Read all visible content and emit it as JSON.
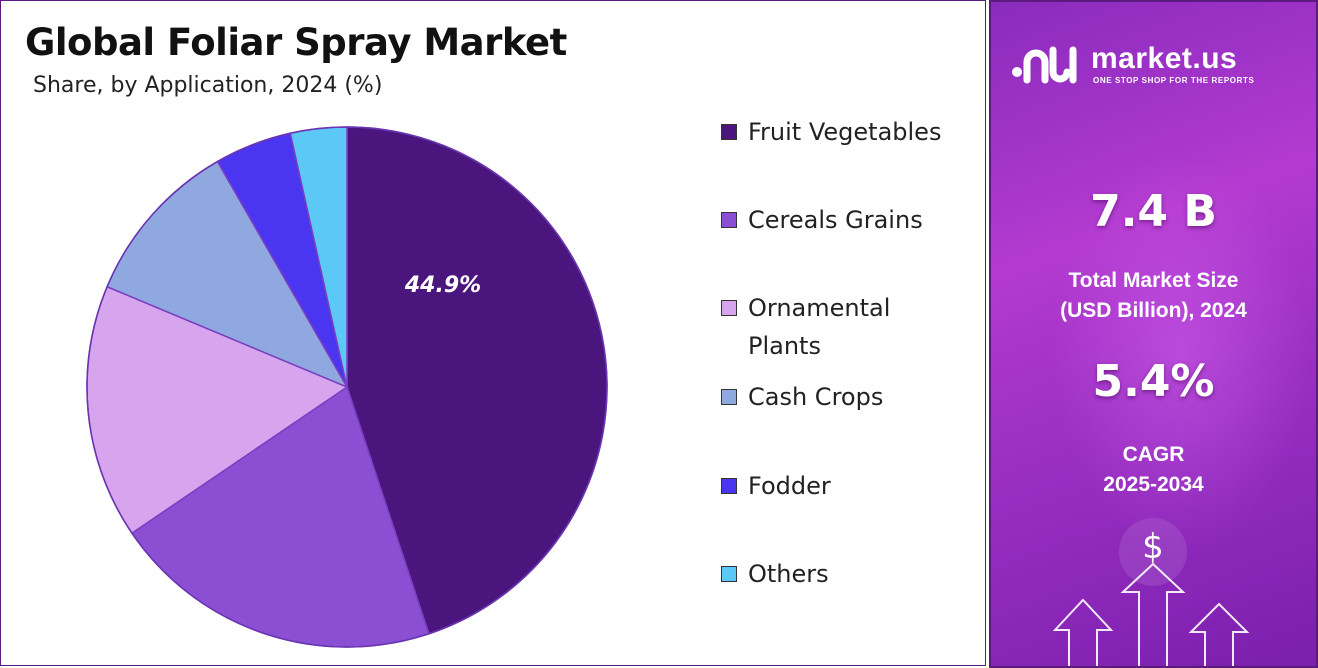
{
  "header": {
    "title": "Global Foliar Spray Market",
    "subtitle": "Share, by Application, 2024 (%)"
  },
  "chart_data": {
    "type": "pie",
    "categories": [
      "Fruit Vegetables",
      "Cereals Grains",
      "Ornamental Plants",
      "Cash Crops",
      "Fodder",
      "Others"
    ],
    "values": [
      44.9,
      20.6,
      15.8,
      10.4,
      4.8,
      3.5
    ],
    "colors": [
      "#4b157e",
      "#8a4fd3",
      "#d6a5ee",
      "#8fa8df",
      "#4a35f0",
      "#5bc8f5"
    ],
    "data_labels": [
      "44.9%",
      "",
      "",
      "",
      "",
      ""
    ],
    "start_angle_deg": 0,
    "direction": "clockwise",
    "legend_position": "right"
  },
  "legend": {
    "items": [
      {
        "label": "Fruit Vegetables"
      },
      {
        "label": "Cereals Grains"
      },
      {
        "label": "Ornamental Plants"
      },
      {
        "label": "Cash Crops"
      },
      {
        "label": "Fodder"
      },
      {
        "label": "Others"
      }
    ]
  },
  "sidebar": {
    "brand_name": "market.us",
    "brand_tagline": "ONE STOP SHOP FOR THE REPORTS",
    "market_size_value": "7.4 B",
    "market_size_label_1": "Total Market Size",
    "market_size_label_2": "(USD Billion), 2024",
    "cagr_value": "5.4%",
    "cagr_label_1": "CAGR",
    "cagr_label_2": "2025-2034",
    "dollar_symbol": "$"
  }
}
